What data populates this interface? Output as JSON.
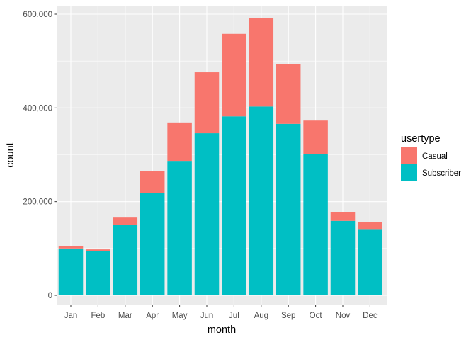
{
  "chart_data": {
    "type": "bar",
    "stacked": true,
    "categories": [
      "Jan",
      "Feb",
      "Mar",
      "Apr",
      "May",
      "Jun",
      "Jul",
      "Aug",
      "Sep",
      "Oct",
      "Nov",
      "Dec"
    ],
    "series": [
      {
        "name": "Casual",
        "color": "#F8766D",
        "values": [
          5000,
          4000,
          16000,
          47000,
          82000,
          130000,
          176000,
          188000,
          128000,
          72000,
          18000,
          16000
        ]
      },
      {
        "name": "Subscriber",
        "color": "#00BFC4",
        "values": [
          100000,
          94000,
          150000,
          218000,
          287000,
          346000,
          382000,
          403000,
          366000,
          301000,
          159000,
          140000
        ]
      }
    ],
    "xlabel": "month",
    "ylabel": "count",
    "ylim": [
      0,
      620000
    ],
    "yticks": [
      0,
      200000,
      400000,
      600000
    ],
    "ytick_labels": [
      "0",
      "200,000",
      "400,000",
      "600,000"
    ],
    "legend": {
      "title": "usertype",
      "position": "right",
      "entries": [
        "Casual",
        "Subscriber"
      ]
    },
    "grid": true,
    "panel_background": "#EBEBEB",
    "grid_color": "#FFFFFF"
  }
}
